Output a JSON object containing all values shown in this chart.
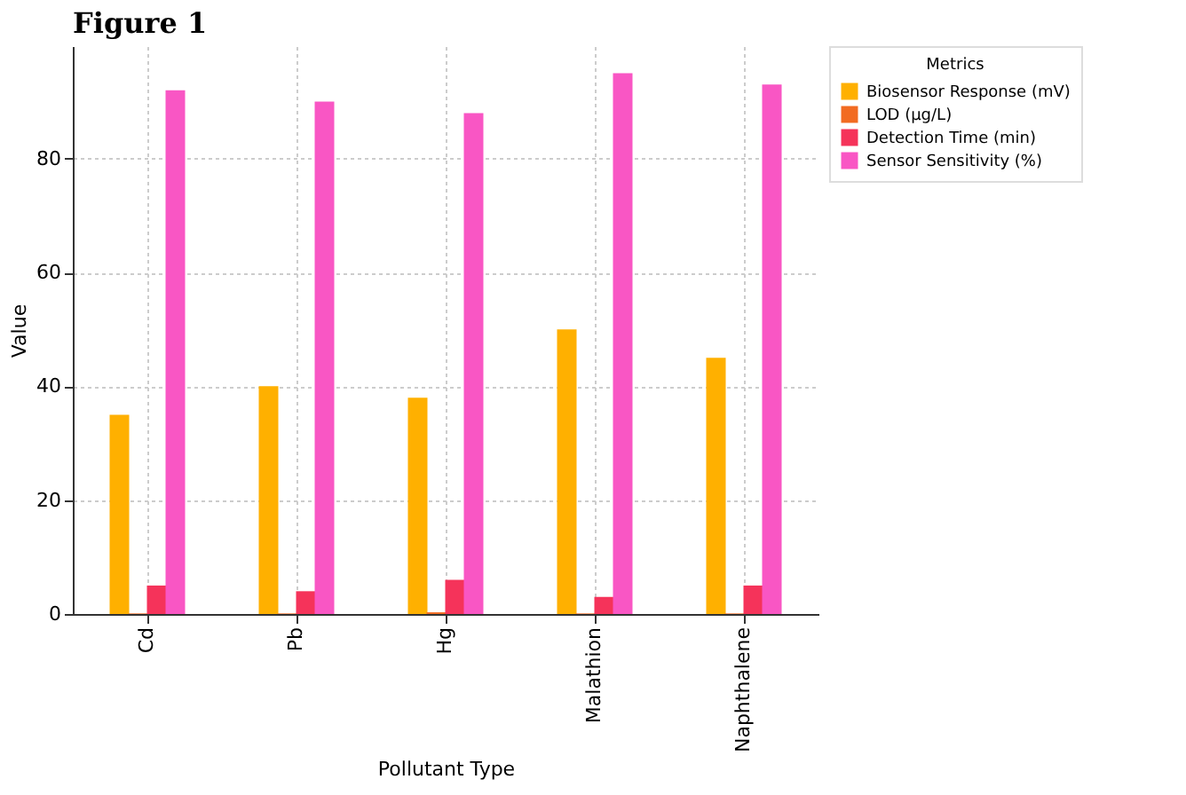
{
  "chart_data": {
    "type": "bar",
    "title": "Figure 1",
    "xlabel": "Pollutant Type",
    "ylabel": "Value",
    "legend_title": "Metrics",
    "categories": [
      "Cd",
      "Pb",
      "Hg",
      "Malathion",
      "Naphthalene"
    ],
    "series": [
      {
        "name": "Biosensor Response (mV)",
        "color": "#ffb000",
        "values": [
          35,
          40,
          38,
          50,
          45
        ]
      },
      {
        "name": "LOD (µg/L)",
        "color": "#f26b21",
        "values": [
          0.1,
          0.1,
          0.3,
          0.1,
          0.1
        ]
      },
      {
        "name": "Detection Time (min)",
        "color": "#f5335a",
        "values": [
          5,
          4,
          6,
          3,
          5
        ]
      },
      {
        "name": "Sensor Sensitivity (%)",
        "color": "#f956c4",
        "values": [
          92,
          90,
          88,
          95,
          93
        ]
      }
    ],
    "ylim": [
      0,
      99.75
    ],
    "yticks": [
      0,
      20,
      40,
      60,
      80
    ],
    "grid": true,
    "legend": "right"
  }
}
